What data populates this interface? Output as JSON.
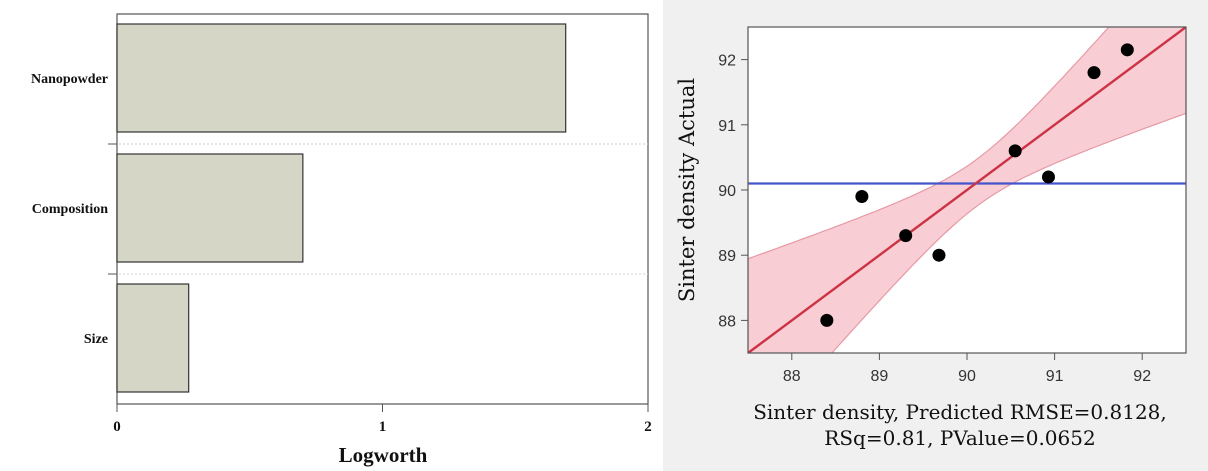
{
  "chart_data": [
    {
      "type": "bar",
      "orientation": "horizontal",
      "categories": [
        "Nanopowder",
        "Composition",
        "Size"
      ],
      "values": [
        1.69,
        0.7,
        0.27
      ],
      "xlabel": "Logworth",
      "ylabel": "",
      "xlim": [
        0,
        2
      ],
      "xticks": [
        "0",
        "1",
        "2"
      ],
      "colors": {
        "bar_fill": "#d5d6c6",
        "bar_stroke": "#333333"
      },
      "grid": false
    },
    {
      "type": "scatter",
      "x": [
        88.4,
        88.8,
        89.3,
        89.68,
        90.55,
        90.93,
        91.45,
        91.83
      ],
      "y": [
        88.0,
        89.9,
        89.3,
        89.0,
        90.6,
        90.2,
        91.8,
        92.15
      ],
      "xlabel_line1": "Sinter density, Predicted RMSE=0.8128,",
      "xlabel_line2": "RSq=0.81, PValue=0.0652",
      "ylabel": "Sinter density Actual",
      "xlim": [
        87.5,
        92.5
      ],
      "ylim": [
        87.5,
        92.5
      ],
      "xticks": [
        "88",
        "89",
        "90",
        "91",
        "92"
      ],
      "yticks": [
        "88",
        "89",
        "90",
        "91",
        "92"
      ],
      "mean_line": 90.1,
      "fit_line": {
        "slope": 1,
        "intercept": 0
      },
      "colors": {
        "fit": "#cc3344",
        "mean": "#4455cc",
        "band": "#f8cdd3",
        "band_edge": "#e69aa6",
        "point": "#000000"
      },
      "grid": false
    }
  ]
}
